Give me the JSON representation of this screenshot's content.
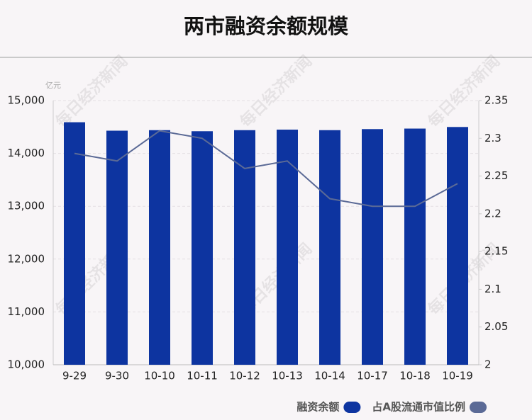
{
  "watermark": "每日经济新闻",
  "chart_data": {
    "type": "bar-line",
    "title": "两市融资余额规模",
    "y_unit": "亿元",
    "categories": [
      "9-29",
      "9-30",
      "10-10",
      "10-11",
      "10-12",
      "10-13",
      "10-14",
      "10-17",
      "10-18",
      "10-19"
    ],
    "series": [
      {
        "name": "融资余额",
        "type": "bar",
        "color": "#0d34a0",
        "values": [
          14590,
          14430,
          14440,
          14420,
          14440,
          14450,
          14440,
          14460,
          14470,
          14500
        ]
      },
      {
        "name": "占A股流通市值比例",
        "type": "line",
        "axis": "y2",
        "color": "#5b6a96",
        "values": [
          2.28,
          2.27,
          2.31,
          2.3,
          2.26,
          2.27,
          2.22,
          2.21,
          2.21,
          2.24
        ]
      }
    ],
    "ylim": [
      10000,
      15000
    ],
    "yticks": [
      {
        "value": 10000,
        "label": "10,000"
      },
      {
        "value": 11000,
        "label": "11,000"
      },
      {
        "value": 12000,
        "label": "12,000"
      },
      {
        "value": 13000,
        "label": "13,000"
      },
      {
        "value": 14000,
        "label": "14,000"
      },
      {
        "value": 15000,
        "label": "15,000"
      }
    ],
    "y2lim": [
      2,
      2.35
    ],
    "y2ticks": [
      2,
      2.05,
      2.1,
      2.15,
      2.2,
      2.25,
      2.3,
      2.35
    ],
    "grid": true,
    "legend": "bottom-right"
  }
}
